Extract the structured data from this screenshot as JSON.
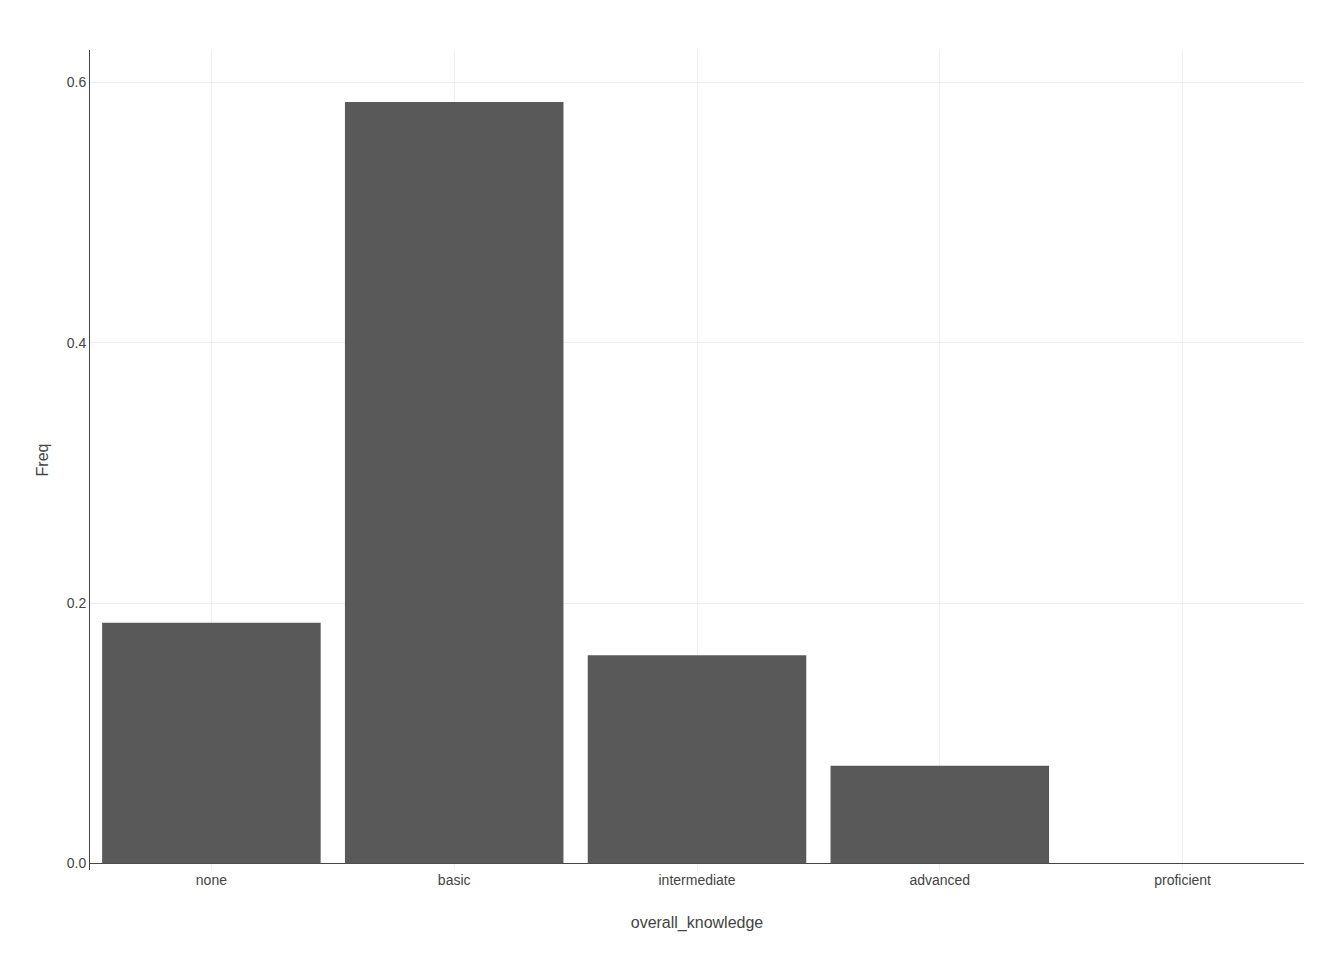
{
  "chart_data": {
    "type": "bar",
    "categories": [
      "none",
      "basic",
      "intermediate",
      "advanced",
      "proficient"
    ],
    "values": [
      0.185,
      0.585,
      0.16,
      0.075,
      0.0
    ],
    "color": "#595959",
    "xlabel": "overall_knowledge",
    "ylabel": "Freq",
    "ylim": [
      -0.005,
      0.625
    ],
    "yticks": [
      {
        "value": 0.0,
        "label": "0.0"
      },
      0.2,
      0.4,
      0.6
    ],
    "grid": true
  }
}
